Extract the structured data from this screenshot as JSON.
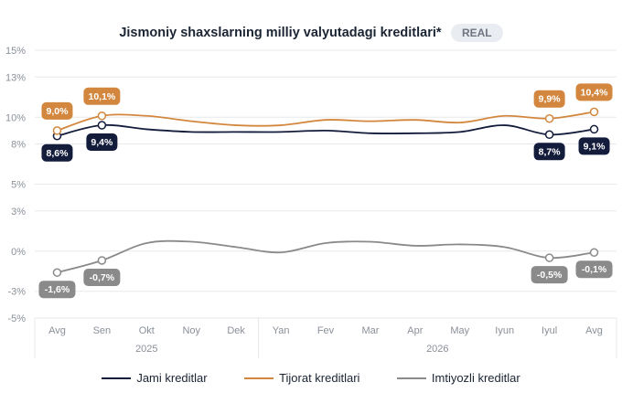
{
  "title": "Jismoniy shaxslarning milliy valyutadagi kreditlari*",
  "badge": "REAL",
  "chart_data": {
    "type": "line",
    "ylim": [
      -5,
      15
    ],
    "yticks": [
      -5,
      -3,
      0,
      3,
      5,
      8,
      10,
      13,
      15
    ],
    "ytick_labels": [
      "-5%",
      "-3%",
      "0%",
      "3%",
      "5%",
      "8%",
      "10%",
      "13%",
      "15%"
    ],
    "categories": [
      "Avg",
      "Sen",
      "Okt",
      "Noy",
      "Dek",
      "Yan",
      "Fev",
      "Mar",
      "Apr",
      "May",
      "Iyun",
      "Iyul",
      "Avg"
    ],
    "year_groups": [
      {
        "label": "2025",
        "from": 0,
        "to": 4
      },
      {
        "label": "2026",
        "from": 5,
        "to": 12
      }
    ],
    "grid": true,
    "legend_position": "bottom",
    "series": [
      {
        "name": "Jami kreditlar",
        "color": "#141c3c",
        "values": [
          8.6,
          9.4,
          9.1,
          8.9,
          8.9,
          8.9,
          9.0,
          8.8,
          8.8,
          8.9,
          9.4,
          8.7,
          9.1
        ],
        "labels": [
          {
            "index": 0,
            "text": "8,6%",
            "pos": "below"
          },
          {
            "index": 1,
            "text": "9,4%",
            "pos": "below"
          },
          {
            "index": 11,
            "text": "8,7%",
            "pos": "below"
          },
          {
            "index": 12,
            "text": "9,1%",
            "pos": "below"
          }
        ]
      },
      {
        "name": "Tijorat kreditlari",
        "color": "#d3873e",
        "values": [
          9.0,
          10.1,
          10.1,
          9.7,
          9.4,
          9.4,
          9.8,
          9.7,
          9.8,
          9.6,
          10.1,
          9.9,
          10.4
        ],
        "labels": [
          {
            "index": 0,
            "text": "9,0%",
            "pos": "above"
          },
          {
            "index": 1,
            "text": "10,1%",
            "pos": "above"
          },
          {
            "index": 11,
            "text": "9,9%",
            "pos": "above"
          },
          {
            "index": 12,
            "text": "10,4%",
            "pos": "above"
          }
        ]
      },
      {
        "name": "Imtiyozli kreditlar",
        "color": "#8a8a8a",
        "values": [
          -1.6,
          -0.7,
          0.6,
          0.7,
          0.3,
          -0.1,
          0.6,
          0.7,
          0.4,
          0.5,
          0.3,
          -0.5,
          -0.1
        ],
        "labels": [
          {
            "index": 0,
            "text": "-1,6%",
            "pos": "below"
          },
          {
            "index": 1,
            "text": "-0,7%",
            "pos": "below"
          },
          {
            "index": 11,
            "text": "-0,5%",
            "pos": "below"
          },
          {
            "index": 12,
            "text": "-0,1%",
            "pos": "below"
          }
        ]
      }
    ]
  }
}
